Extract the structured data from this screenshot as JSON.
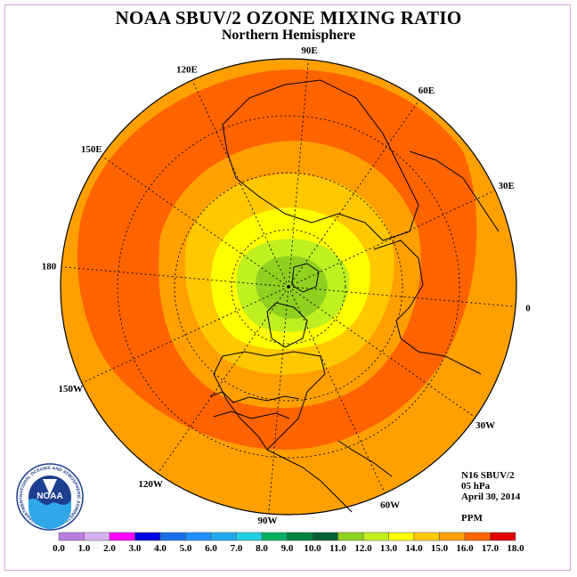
{
  "title": "NOAA SBUV/2 OZONE MIXING RATIO",
  "subtitle": "Northern Hemisphere",
  "info": {
    "satellite": "N16 SBUV/2",
    "level": "05 hPa",
    "date": "April 30, 2014",
    "units": "PPM"
  },
  "logo": {
    "text": "NOAA",
    "ring_text": "NATIONAL OCEANIC AND ATMOSPHERIC ADMINISTRATION · U.S. DEPARTMENT OF COMMERCE"
  },
  "longitude_labels": [
    {
      "lon": 90,
      "label": "90E"
    },
    {
      "lon": 60,
      "label": "60E"
    },
    {
      "lon": 30,
      "label": "30E"
    },
    {
      "lon": 0,
      "label": "0"
    },
    {
      "lon": -30,
      "label": "30W"
    },
    {
      "lon": -60,
      "label": "60W"
    },
    {
      "lon": -90,
      "label": "90W"
    },
    {
      "lon": -120,
      "label": "120W"
    },
    {
      "lon": -150,
      "label": "150W"
    },
    {
      "lon": 180,
      "label": "180"
    },
    {
      "lon": 150,
      "label": "150E"
    },
    {
      "lon": 120,
      "label": "120E"
    }
  ],
  "colorbar": {
    "ticks": [
      "0.0",
      "1.0",
      "2.0",
      "3.0",
      "4.0",
      "5.0",
      "6.0",
      "7.0",
      "8.0",
      "9.0",
      "10.0",
      "11.0",
      "12.0",
      "13.0",
      "14.0",
      "15.0",
      "16.0",
      "17.0",
      "18.0"
    ],
    "colors": [
      "#b87ee0",
      "#d8b0f0",
      "#ff00ff",
      "#0000e0",
      "#1a6fe8",
      "#1e90ff",
      "#1eaaf0",
      "#20d0e0",
      "#00b060",
      "#008040",
      "#006030",
      "#90d020",
      "#c0f020",
      "#ffff00",
      "#ffc800",
      "#ffa000",
      "#ff6400",
      "#e00000",
      "#8b5a3c"
    ]
  },
  "colors": {
    "ppm_16_17": "#ff6400",
    "ppm_15_16": "#ffa000",
    "ppm_14_15": "#ffc800",
    "ppm_13_14": "#ffff00",
    "ppm_12_13": "#c0f020",
    "ppm_11_12": "#90d020",
    "land_outline": "#000000"
  }
}
